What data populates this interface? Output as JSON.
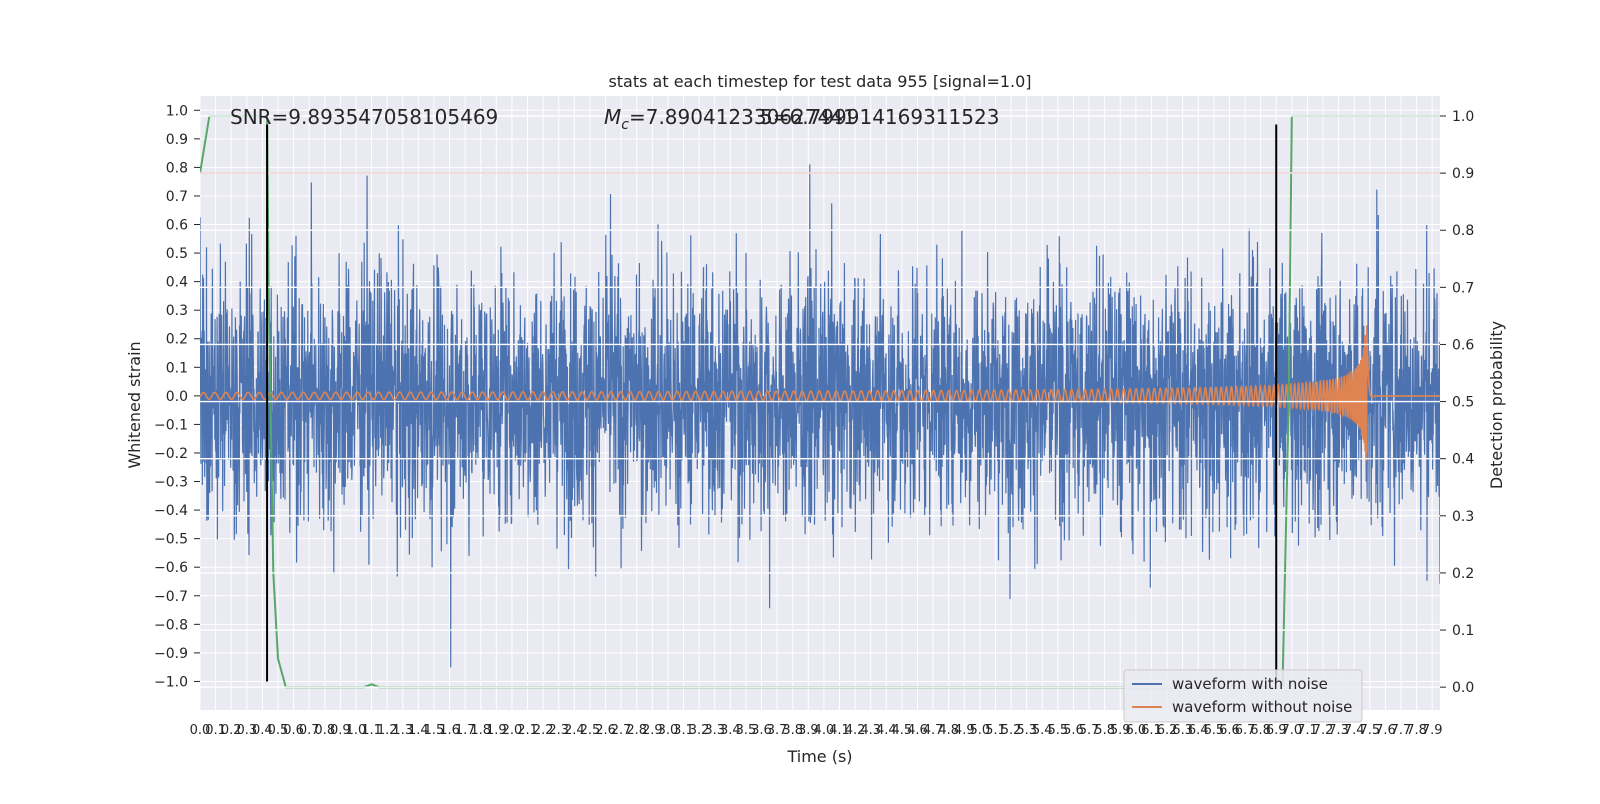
{
  "chart_data": {
    "type": "line",
    "title": "stats at each timestep for test data 955 [signal=1.0]",
    "xlabel": "Time (s)",
    "ylabel": "Whitened strain",
    "y2label": "Detection probability",
    "xlim": [
      0.0,
      7.95
    ],
    "ylim": [
      -1.1,
      1.05
    ],
    "y2lim": [
      -0.04,
      1.035
    ],
    "grid": true,
    "legend_position": "lower-right",
    "annotations": {
      "snr": "SNR=9.893547058105469",
      "mc_symbol": "M",
      "mc_subscript": "c",
      "mc_value": "=7.890412330627441",
      "overlap_value": "5=6.799914169311523"
    },
    "x_ticks": [
      "0.0",
      "0.1",
      "0.2",
      "0.3",
      "0.4",
      "0.5",
      "0.6",
      "0.7",
      "0.8",
      "0.9",
      "1.0",
      "1.1",
      "1.2",
      "1.3",
      "1.4",
      "1.5",
      "1.6",
      "1.7",
      "1.8",
      "1.9",
      "2.0",
      "2.1",
      "2.2",
      "2.3",
      "2.4",
      "2.5",
      "2.6",
      "2.7",
      "2.8",
      "2.9",
      "3.0",
      "3.1",
      "3.2",
      "3.3",
      "3.4",
      "3.5",
      "3.6",
      "3.7",
      "3.8",
      "3.9",
      "4.0",
      "4.1",
      "4.2",
      "4.3",
      "4.4",
      "4.5",
      "4.6",
      "4.7",
      "4.8",
      "4.9",
      "5.0",
      "5.1",
      "5.2",
      "5.3",
      "5.4",
      "5.5",
      "5.6",
      "5.7",
      "5.8",
      "5.9",
      "6.0",
      "6.1",
      "6.2",
      "6.3",
      "6.4",
      "6.5",
      "6.6",
      "6.7",
      "6.8",
      "6.9",
      "7.0",
      "7.1",
      "7.2",
      "7.3",
      "7.4",
      "7.5",
      "7.6",
      "7.7",
      "7.8",
      "7.9"
    ],
    "y_ticks": [
      "1.0",
      "0.9",
      "0.8",
      "0.7",
      "0.6",
      "0.5",
      "0.4",
      "0.3",
      "0.2",
      "0.1",
      "0.0",
      "−0.1",
      "−0.2",
      "−0.3",
      "−0.4",
      "−0.5",
      "−0.6",
      "−0.7",
      "−0.8",
      "−0.9",
      "−1.0"
    ],
    "y2_ticks": [
      "1.0",
      "0.9",
      "0.8",
      "0.7",
      "0.6",
      "0.5",
      "0.4",
      "0.3",
      "0.2",
      "0.1",
      "0.0"
    ],
    "series": [
      {
        "name": "waveform with noise",
        "axis": "left",
        "color": "#4c72b0",
        "style": "noise",
        "typical_amplitude": 0.45,
        "max_abs": 0.95
      },
      {
        "name": "waveform without noise",
        "axis": "left",
        "color": "#dd8452",
        "style": "chirp",
        "merger_time": 7.48,
        "amplitude_start": 0.012,
        "amplitude_peak": 0.27
      },
      {
        "axis": "right",
        "color": "#55a868",
        "x": [
          0.0,
          0.06,
          0.12,
          0.2,
          0.35,
          0.43,
          0.44,
          0.47,
          0.5,
          0.55,
          1.0,
          1.05,
          1.1,
          1.15,
          1.3,
          6.94,
          6.98,
          7.0,
          7.02,
          7.95
        ],
        "y": [
          0.9,
          1.0,
          1.0,
          1.0,
          1.0,
          1.0,
          0.7,
          0.2,
          0.05,
          0.0,
          0.0,
          0.0,
          0.005,
          0.0,
          0.0,
          0.0,
          0.5,
          1.0,
          1.0,
          1.0
        ]
      },
      {
        "axis": "right",
        "color": "#c44e52",
        "style": "hline",
        "y": 0.9
      }
    ],
    "vlines": [
      {
        "x": 0.43,
        "ymin": -1.0,
        "ymax": 0.95,
        "color": "#000000"
      },
      {
        "x": 6.9,
        "ymin": -1.0,
        "ymax": 0.95,
        "color": "#000000"
      }
    ]
  }
}
